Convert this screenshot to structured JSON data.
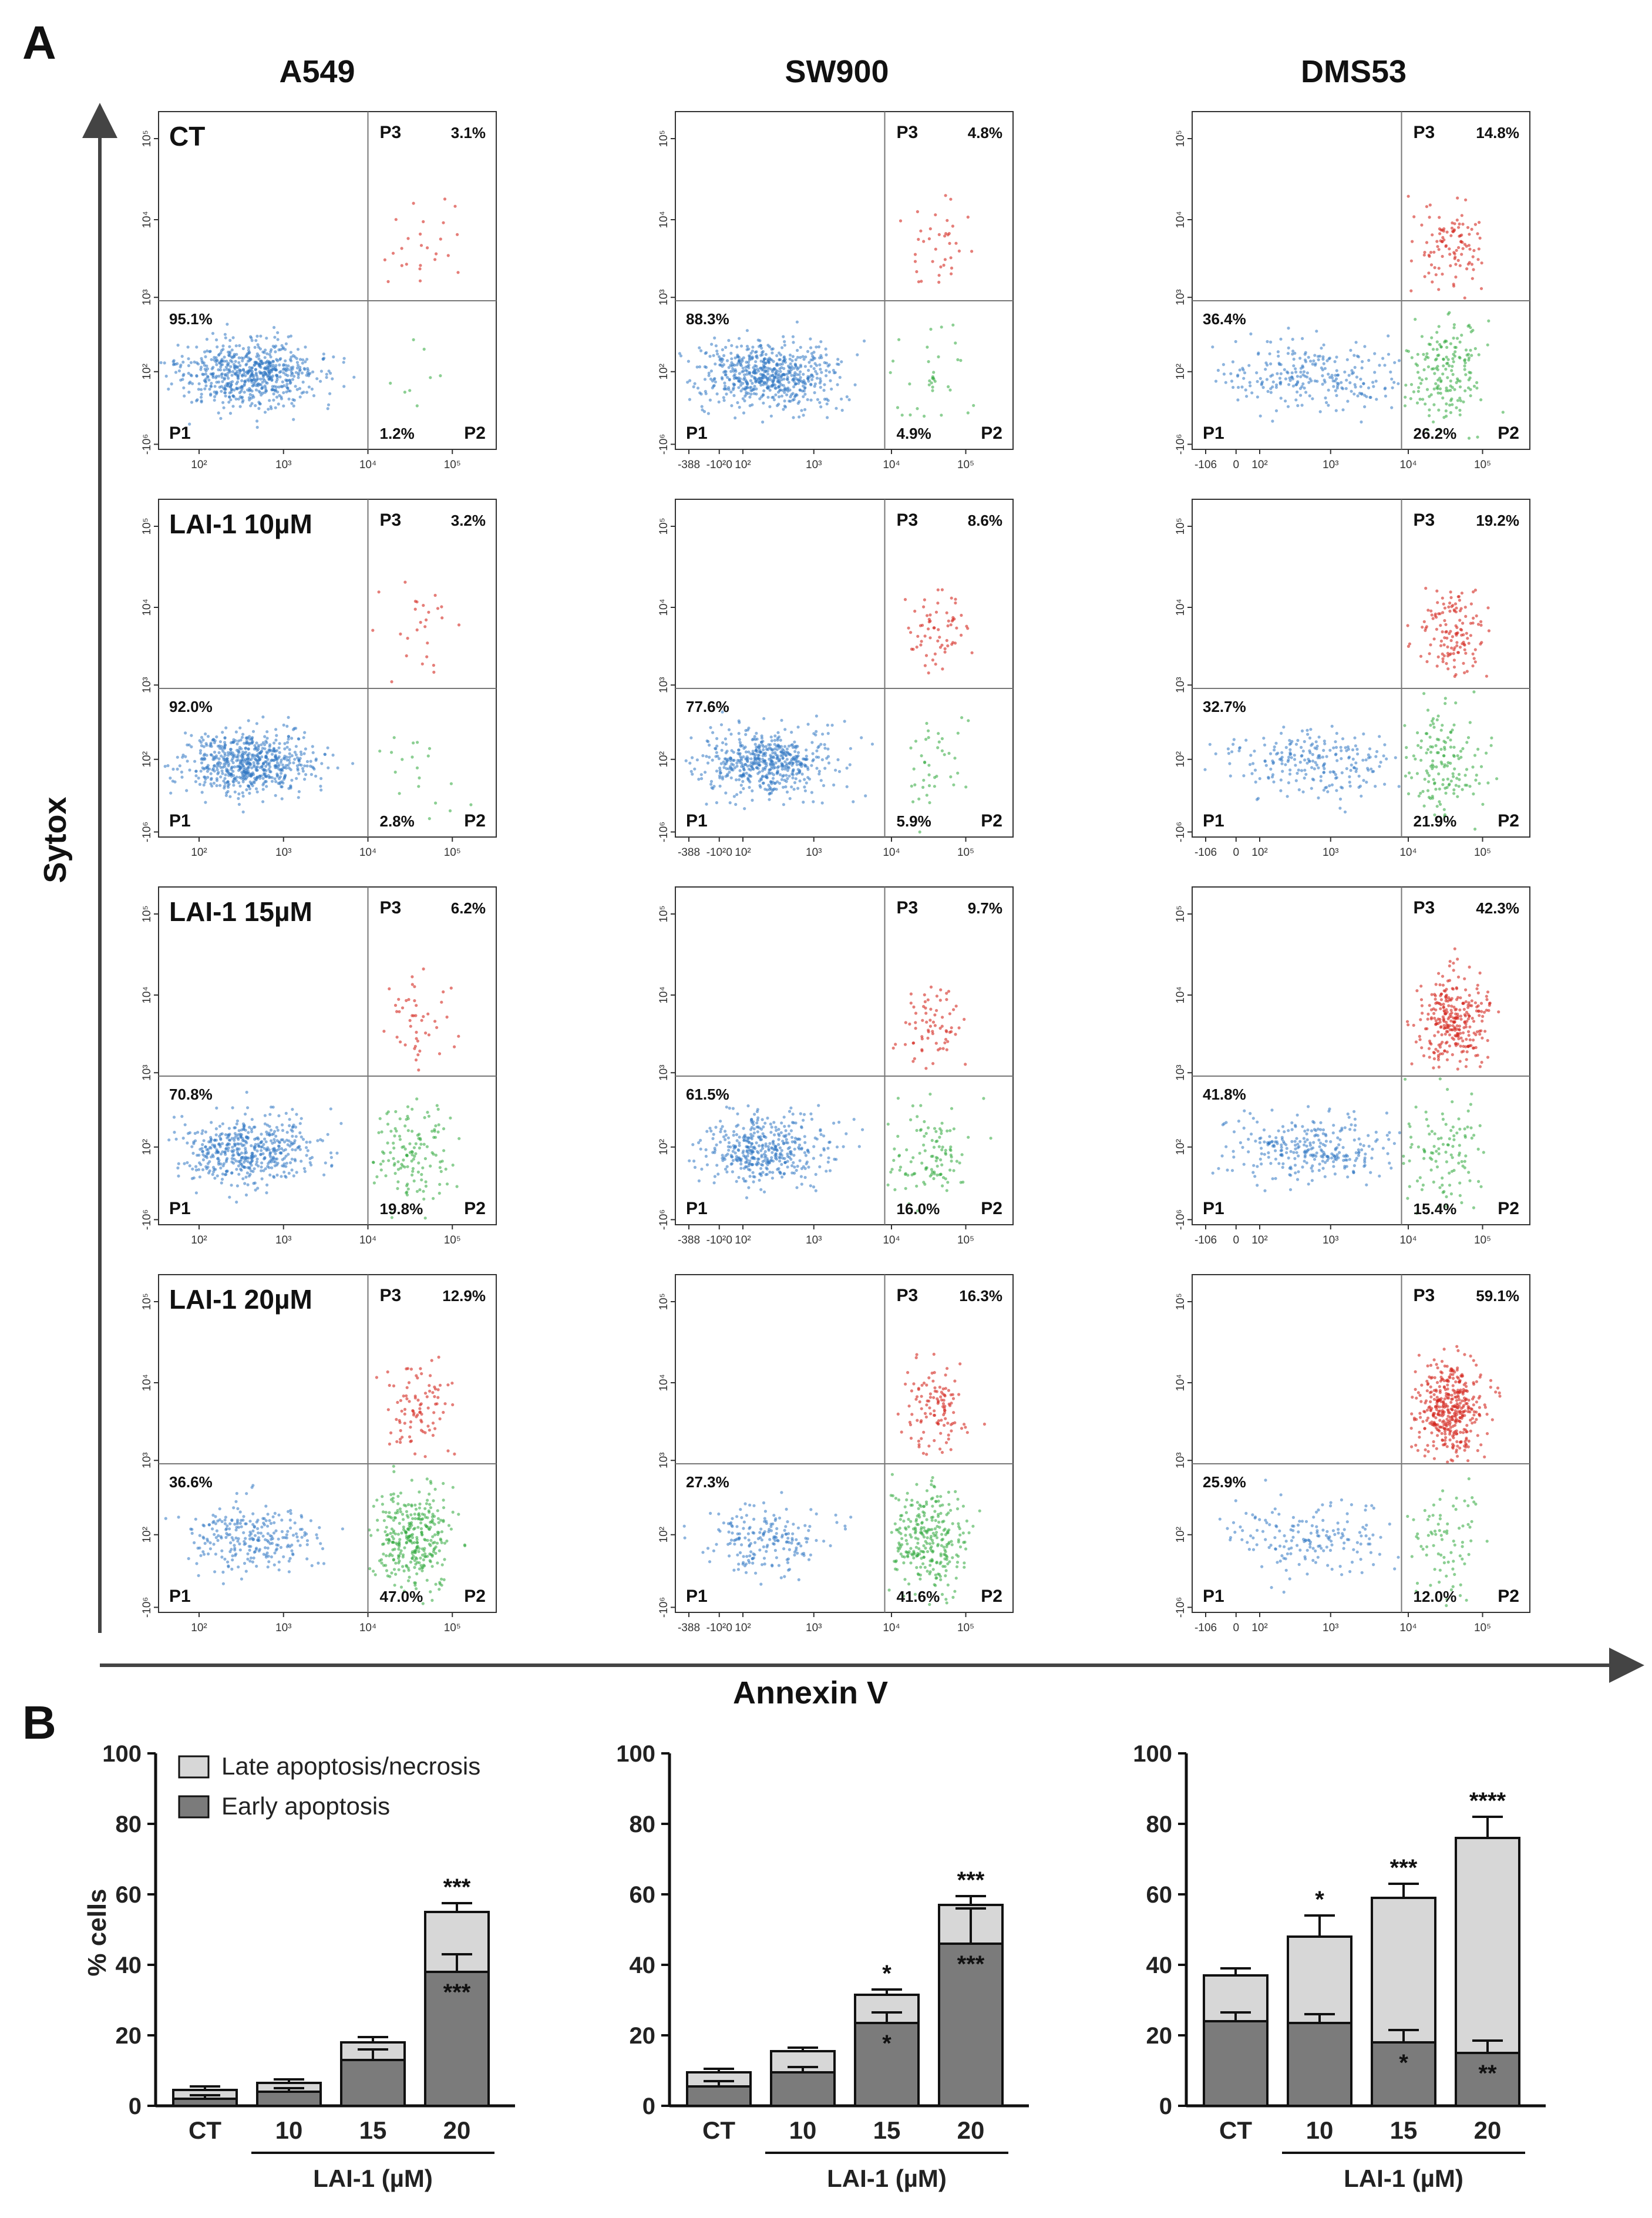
{
  "panel_labels": {
    "a": "A",
    "b": "B"
  },
  "flow": {
    "cell_lines": [
      "A549",
      "SW900",
      "DMS53"
    ],
    "treatments": [
      "CT",
      "LAI-1 10µM",
      "LAI-1 15µM",
      "LAI-1 20µM"
    ],
    "x_axis_title": "Annexin V",
    "y_axis_title": "Sytox",
    "gate_labels": {
      "p1": "P1",
      "p2": "P2",
      "p3": "P3"
    },
    "y_tick_labels": [
      "-10⁶",
      "10²",
      "10³",
      "10⁴",
      "10⁵"
    ],
    "x_tick_labels": {
      "A549": [
        "10²",
        "10³",
        "10⁴",
        "10⁵"
      ],
      "SW900": [
        "-388",
        "-10²0",
        "10²",
        "10³",
        "10⁴",
        "10⁵"
      ],
      "DMS53": [
        "-106",
        "0",
        "10²",
        "10³",
        "10⁴",
        "10⁵"
      ]
    },
    "populations": [
      [
        {
          "p1": "95.1%",
          "p2": "1.2%",
          "p3": "3.1%"
        },
        {
          "p1": "88.3%",
          "p2": "4.9%",
          "p3": "4.8%"
        },
        {
          "p1": "36.4%",
          "p2": "26.2%",
          "p3": "14.8%"
        }
      ],
      [
        {
          "p1": "92.0%",
          "p2": "2.8%",
          "p3": "3.2%"
        },
        {
          "p1": "77.6%",
          "p2": "5.9%",
          "p3": "8.6%"
        },
        {
          "p1": "32.7%",
          "p2": "21.9%",
          "p3": "19.2%"
        }
      ],
      [
        {
          "p1": "70.8%",
          "p2": "19.8%",
          "p3": "6.2%"
        },
        {
          "p1": "61.5%",
          "p2": "16.0%",
          "p3": "9.7%"
        },
        {
          "p1": "41.8%",
          "p2": "15.4%",
          "p3": "42.3%"
        }
      ],
      [
        {
          "p1": "36.6%",
          "p2": "47.0%",
          "p3": "12.9%"
        },
        {
          "p1": "27.3%",
          "p2": "41.6%",
          "p3": "16.3%"
        },
        {
          "p1": "25.9%",
          "p2": "12.0%",
          "p3": "59.1%"
        }
      ]
    ]
  },
  "chart_data": [
    {
      "type": "bar",
      "stacked": true,
      "cell_line": "A549",
      "categories": [
        "CT",
        "10",
        "15",
        "20"
      ],
      "xlabel": "LAI-1 (µM)",
      "ylabel": "% cells",
      "ylim": [
        0,
        100
      ],
      "yticks": [
        0,
        20,
        40,
        60,
        80,
        100
      ],
      "legend": [
        "Late apoptosis/necrosis",
        "Early apoptosis"
      ],
      "series": [
        {
          "name": "Early apoptosis",
          "values": [
            2,
            4,
            13,
            38
          ],
          "errors": [
            1,
            1,
            3,
            5
          ],
          "annotations": [
            "",
            "",
            "",
            "***"
          ]
        },
        {
          "name": "Late apoptosis/necrosis",
          "values": [
            2.5,
            2.5,
            5,
            17
          ],
          "errors": [
            1,
            1,
            1.5,
            2.5
          ],
          "annotations": [
            "",
            "",
            "",
            "***"
          ]
        }
      ]
    },
    {
      "type": "bar",
      "stacked": true,
      "cell_line": "SW900",
      "categories": [
        "CT",
        "10",
        "15",
        "20"
      ],
      "xlabel": "LAI-1 (µM)",
      "ylabel": "",
      "ylim": [
        0,
        100
      ],
      "yticks": [
        0,
        20,
        40,
        60,
        80,
        100
      ],
      "series": [
        {
          "name": "Early apoptosis",
          "values": [
            5.5,
            9.5,
            23.5,
            46
          ],
          "errors": [
            1.5,
            1.5,
            3,
            10
          ],
          "annotations": [
            "",
            "",
            "*",
            "***"
          ]
        },
        {
          "name": "Late apoptosis/necrosis",
          "values": [
            4,
            6,
            8,
            11
          ],
          "errors": [
            1,
            1,
            1.5,
            2.5
          ],
          "annotations": [
            "",
            "",
            "*",
            "***"
          ]
        }
      ]
    },
    {
      "type": "bar",
      "stacked": true,
      "cell_line": "DMS53",
      "categories": [
        "CT",
        "10",
        "15",
        "20"
      ],
      "xlabel": "LAI-1 (µM)",
      "ylabel": "",
      "ylim": [
        0,
        100
      ],
      "yticks": [
        0,
        20,
        40,
        60,
        80,
        100
      ],
      "series": [
        {
          "name": "Early apoptosis",
          "values": [
            24,
            23.5,
            18,
            15
          ],
          "errors": [
            2.5,
            2.5,
            3.5,
            3.5
          ],
          "annotations": [
            "",
            "",
            "*",
            "**"
          ]
        },
        {
          "name": "Late apoptosis/necrosis",
          "values": [
            13,
            24.5,
            41,
            61
          ],
          "errors": [
            2,
            6,
            4,
            6
          ],
          "annotations": [
            "",
            "*",
            "***",
            "****"
          ]
        }
      ]
    }
  ]
}
